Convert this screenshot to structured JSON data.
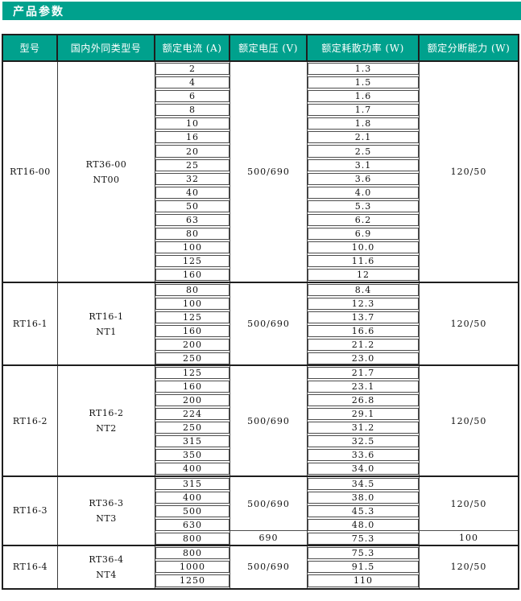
{
  "page": {
    "title": "产品参数"
  },
  "colors": {
    "accent_teal": "#00a18d",
    "border_dark": "#1e1e1e",
    "cell_border": "#4d4d4d",
    "header_text": "#ffffff",
    "body_text": "#111111"
  },
  "table": {
    "headers": [
      "型号",
      "国内外同类型号",
      "额定电流 (A)",
      "额定电压 (V)",
      "额定耗散功率 (W)",
      "额定分断能力 (W)"
    ],
    "groups": [
      {
        "model": "RT16-00",
        "equivalent": [
          "RT36-00",
          "NT00"
        ],
        "segments": [
          {
            "currents": [
              "2",
              "4",
              "6",
              "8",
              "10",
              "16",
              "20",
              "25",
              "32",
              "40",
              "50",
              "63",
              "80",
              "100",
              "125",
              "160"
            ],
            "voltage": "500/690",
            "powers": [
              "1.3",
              "1.5",
              "1.6",
              "1.7",
              "1.8",
              "2.1",
              "2.5",
              "3.1",
              "3.6",
              "4.0",
              "5.3",
              "6.2",
              "6.9",
              "10.0",
              "11.6",
              "12"
            ],
            "breaking": "120/50"
          }
        ]
      },
      {
        "model": "RT16-1",
        "equivalent": [
          "RT16-1",
          "NT1"
        ],
        "segments": [
          {
            "currents": [
              "80",
              "100",
              "125",
              "160",
              "200",
              "250"
            ],
            "voltage": "500/690",
            "powers": [
              "8.4",
              "12.3",
              "13.7",
              "16.6",
              "21.2",
              "23.0"
            ],
            "breaking": "120/50"
          }
        ]
      },
      {
        "model": "RT16-2",
        "equivalent": [
          "RT16-2",
          "NT2"
        ],
        "segments": [
          {
            "currents": [
              "125",
              "160",
              "200",
              "224",
              "250",
              "315",
              "350",
              "400"
            ],
            "voltage": "500/690",
            "powers": [
              "21.7",
              "23.1",
              "26.8",
              "29.1",
              "31.2",
              "32.5",
              "33.6",
              "34.0"
            ],
            "breaking": "120/50"
          }
        ]
      },
      {
        "model": "RT16-3",
        "equivalent": [
          "RT36-3",
          "NT3"
        ],
        "segments": [
          {
            "currents": [
              "315",
              "400",
              "500",
              "630"
            ],
            "voltage": "500/690",
            "powers": [
              "34.5",
              "38.0",
              "45.3",
              "48.0"
            ],
            "breaking": "120/50"
          },
          {
            "currents": [
              "800"
            ],
            "voltage": "690",
            "powers": [
              "75.3"
            ],
            "breaking": "100"
          }
        ]
      },
      {
        "model": "RT16-4",
        "equivalent": [
          "RT36-4",
          "NT4"
        ],
        "segments": [
          {
            "currents": [
              "800",
              "1000",
              "1250"
            ],
            "voltage": "500/690",
            "powers": [
              "75.3",
              "91.5",
              "110"
            ],
            "breaking": "120/50"
          }
        ]
      }
    ]
  }
}
